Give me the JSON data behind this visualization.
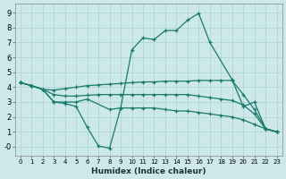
{
  "xlabel": "Humidex (Indice chaleur)",
  "color": "#1a7a6e",
  "bg_color": "#cce8e8",
  "grid_color": "#aad0d0",
  "ylim": [
    -0.6,
    9.6
  ],
  "xlim": [
    -0.5,
    23.5
  ],
  "yticks": [
    0,
    1,
    2,
    3,
    4,
    5,
    6,
    7,
    8,
    9
  ],
  "xticks": [
    0,
    1,
    2,
    3,
    4,
    5,
    6,
    7,
    8,
    9,
    10,
    11,
    12,
    13,
    14,
    15,
    16,
    17,
    18,
    19,
    20,
    21,
    22,
    23
  ],
  "line_main_x": [
    0,
    1,
    2,
    3,
    4,
    5,
    6,
    8,
    9,
    10,
    11,
    12,
    13,
    14,
    15,
    16,
    17,
    19,
    20,
    21,
    22,
    23
  ],
  "line_main_y": [
    4.3,
    4.1,
    3.85,
    3.0,
    3.0,
    3.0,
    3.2,
    2.5,
    2.6,
    6.5,
    7.3,
    7.2,
    7.8,
    7.8,
    8.5,
    8.95,
    7.0,
    4.5,
    2.7,
    3.0,
    1.2,
    1.0
  ],
  "line_upper_x": [
    0,
    1,
    2,
    3,
    4,
    5,
    6,
    7,
    8,
    9,
    10,
    11,
    12,
    13,
    14,
    15,
    16,
    17,
    18,
    19,
    20,
    21,
    22,
    23
  ],
  "line_upper_y": [
    4.3,
    4.1,
    3.85,
    3.8,
    3.9,
    4.0,
    4.1,
    4.15,
    4.2,
    4.25,
    4.3,
    4.35,
    4.35,
    4.4,
    4.4,
    4.4,
    4.45,
    4.45,
    4.45,
    4.45,
    3.5,
    2.5,
    1.2,
    1.0
  ],
  "line_mid_x": [
    0,
    1,
    2,
    3,
    4,
    5,
    6,
    7,
    8,
    9,
    10,
    11,
    12,
    13,
    14,
    15,
    16,
    17,
    18,
    19,
    20,
    21,
    22,
    23
  ],
  "line_mid_y": [
    4.3,
    4.1,
    3.85,
    3.5,
    3.4,
    3.4,
    3.45,
    3.5,
    3.5,
    3.5,
    3.5,
    3.5,
    3.5,
    3.5,
    3.5,
    3.5,
    3.4,
    3.3,
    3.2,
    3.1,
    2.8,
    2.2,
    1.2,
    1.0
  ],
  "line_dip_x": [
    0,
    1,
    2,
    3,
    4,
    5,
    6,
    7,
    8,
    9,
    10,
    11,
    12,
    13,
    14,
    15,
    16,
    17,
    18,
    19,
    20,
    21,
    22,
    23
  ],
  "line_dip_y": [
    4.3,
    4.1,
    3.85,
    3.0,
    2.9,
    2.7,
    1.3,
    0.05,
    -0.1,
    2.6,
    2.6,
    2.6,
    2.6,
    2.5,
    2.4,
    2.4,
    2.3,
    2.2,
    2.1,
    2.0,
    1.8,
    1.5,
    1.2,
    1.0
  ]
}
